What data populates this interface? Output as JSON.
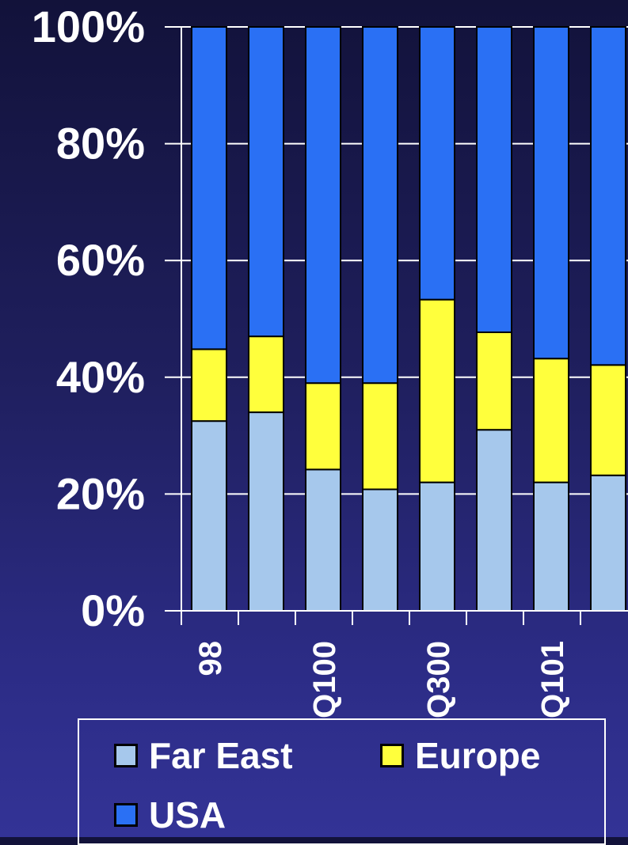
{
  "chart_data": {
    "type": "bar",
    "stacked": true,
    "percent": true,
    "categories": [
      "98",
      "",
      "Q100",
      "",
      "Q300",
      "",
      "Q101",
      ""
    ],
    "series": [
      {
        "name": "Far East",
        "color": "#a6c8ec",
        "values": [
          32.5,
          34,
          24.2,
          20.8,
          22,
          31,
          22,
          23.2
        ]
      },
      {
        "name": "Europe",
        "color": "#ffff3c",
        "values": [
          12.3,
          13,
          14.8,
          18.2,
          31.3,
          16.7,
          21.2,
          18.9
        ]
      },
      {
        "name": "USA",
        "color": "#2a70f4",
        "values": [
          55.2,
          53,
          61,
          61,
          46.7,
          52.3,
          56.8,
          57.9
        ]
      }
    ],
    "y_ticks": [
      "0%",
      "20%",
      "40%",
      "60%",
      "80%",
      "100%"
    ],
    "ylim": [
      0,
      100
    ],
    "grid": true,
    "legend_position": "bottom"
  }
}
